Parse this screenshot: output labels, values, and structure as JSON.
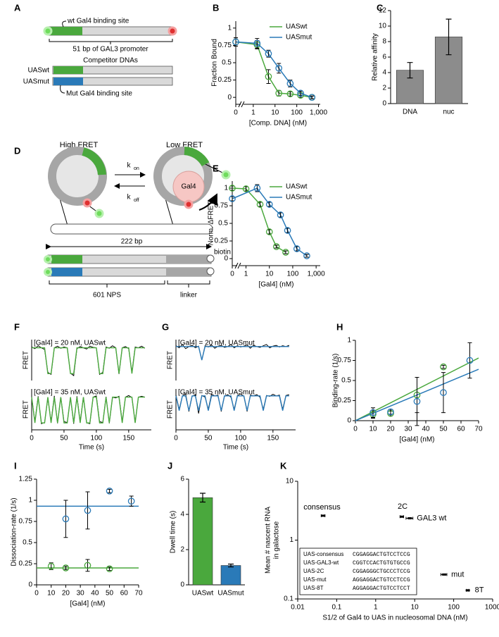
{
  "panels": [
    "A",
    "B",
    "C",
    "D",
    "E",
    "F",
    "G",
    "H",
    "I",
    "J",
    "K"
  ],
  "diagram_a": {
    "labels": [
      "wt Gal4 binding site",
      "51 bp of GAL3 promoter",
      "Competitor DNAs",
      "UASwt",
      "UASmut",
      "Mut Gal4 binding site"
    ]
  },
  "diagram_d": {
    "labels": [
      "High FRET",
      "Low FRET",
      "k",
      "on",
      "k",
      "off",
      "Gal4",
      "222 bp",
      "biotin",
      "601 NPS",
      "linker"
    ]
  },
  "chart_data": [
    {
      "type": "scatter",
      "connect": true,
      "axis_break": true,
      "xscale": "log",
      "xlabel": "[Comp. DNA] (nM)",
      "ylabel": "Fraction Bound",
      "xlim": [
        0.6,
        1200
      ],
      "xticks": [
        0,
        1,
        10,
        100,
        {
          "value": 1000,
          "label": "1,000"
        }
      ],
      "ylim": [
        -0.1,
        1.1
      ],
      "yticks": [
        0,
        0.25,
        0.5,
        0.75,
        1
      ],
      "legend": "upper right",
      "series": [
        {
          "name": "UASwt",
          "color": "#4aa83d",
          "x": [
            0,
            1.5,
            5,
            15,
            50,
            150,
            500
          ],
          "values": [
            0.8,
            0.76,
            0.3,
            0.06,
            0.05,
            0.03,
            0.0
          ],
          "errors": [
            0.06,
            0.06,
            0.1,
            0.04,
            0.03,
            0.03,
            0.02
          ]
        },
        {
          "name": "UASmut",
          "color": "#2a7ab8",
          "x": [
            0,
            1.5,
            5,
            15,
            50,
            150,
            500
          ],
          "values": [
            0.8,
            0.78,
            0.63,
            0.42,
            0.2,
            0.06,
            0.0
          ],
          "errors": [
            0.06,
            0.07,
            0.05,
            0.07,
            0.05,
            0.03,
            0.02
          ]
        }
      ]
    },
    {
      "type": "bar",
      "ylabel": "Relative affinity",
      "categories": [
        "DNA",
        "nuc"
      ],
      "values": [
        4.3,
        8.6
      ],
      "errors": [
        1.0,
        2.3
      ],
      "color": "#8c8c8c",
      "ylim": [
        0,
        12
      ],
      "yticks": [
        0,
        2,
        4,
        6,
        8,
        10,
        12
      ]
    },
    {
      "type": "scatter",
      "connect": true,
      "axis_break": true,
      "xscale": "log",
      "xlabel": "[Gal4] (nM)",
      "ylabel": "Norm.    ΔFRET",
      "xlim": [
        0.9,
        1500
      ],
      "xticks": [
        0,
        1,
        10,
        100,
        {
          "value": 1000,
          "label": "1,000"
        }
      ],
      "ylim": [
        -0.1,
        1.1
      ],
      "yticks": [
        0,
        0.25,
        0.5,
        0.75,
        1
      ],
      "legend": "upper right",
      "series": [
        {
          "name": "UASwt",
          "color": "#4aa83d",
          "x": [
            0,
            1,
            4,
            10,
            20,
            50
          ],
          "values": [
            1.0,
            0.99,
            0.77,
            0.38,
            0.17,
            0.09
          ],
          "errors": [
            0.03,
            0.03,
            0.03,
            0.03,
            0.02,
            0.02
          ]
        },
        {
          "name": "UASmut",
          "color": "#2a7ab8",
          "x": [
            0,
            3,
            10,
            30,
            60,
            150,
            400
          ],
          "values": [
            0.85,
            1.0,
            0.77,
            0.62,
            0.4,
            0.14,
            0.04
          ],
          "errors": [
            0.03,
            0.05,
            0.03,
            0.03,
            0.03,
            0.03,
            0.02
          ]
        }
      ]
    },
    {
      "type": "trace",
      "xlabel": "Time (s)",
      "ylabel": "FRET",
      "color": "#000000",
      "fit_color": "#4aa83d",
      "xlim": [
        0,
        185
      ],
      "xticks": [
        0,
        50,
        100,
        150
      ],
      "ylim": [
        0,
        1
      ],
      "x": [
        0,
        5,
        10,
        15,
        20,
        25,
        30,
        35,
        40,
        45,
        50,
        55,
        60,
        65,
        70,
        75,
        80,
        85,
        90,
        95,
        100,
        105,
        110,
        115,
        120,
        125,
        130,
        135,
        140,
        145,
        150,
        155,
        160,
        165,
        170,
        175
      ],
      "subplots": [
        {
          "label": "[Gal4] = 20 nM, UASwt",
          "values": [
            0.82,
            0.78,
            0.85,
            0.8,
            0.76,
            0.2,
            0.15,
            0.8,
            0.84,
            0.79,
            0.82,
            0.8,
            0.18,
            0.12,
            0.78,
            0.83,
            0.8,
            0.77,
            0.84,
            0.81,
            0.8,
            0.15,
            0.2,
            0.82,
            0.79,
            0.85,
            0.8,
            0.16,
            0.8,
            0.83,
            0.78,
            0.2,
            0.82,
            0.8,
            0.84,
            0.79
          ],
          "fit": [
            0.8,
            0.8,
            0.8,
            0.8,
            0.8,
            0.17,
            0.17,
            0.8,
            0.8,
            0.8,
            0.8,
            0.8,
            0.17,
            0.17,
            0.8,
            0.8,
            0.8,
            0.8,
            0.8,
            0.8,
            0.8,
            0.17,
            0.17,
            0.8,
            0.8,
            0.8,
            0.8,
            0.17,
            0.8,
            0.8,
            0.8,
            0.17,
            0.8,
            0.8,
            0.8,
            0.8
          ]
        },
        {
          "label": "[Gal4] = 35 nM, UASwt",
          "values": [
            0.8,
            0.2,
            0.82,
            0.15,
            0.18,
            0.78,
            0.2,
            0.83,
            0.16,
            0.8,
            0.2,
            0.18,
            0.79,
            0.15,
            0.82,
            0.2,
            0.8,
            0.17,
            0.15,
            0.8,
            0.83,
            0.2,
            0.18,
            0.81,
            0.16,
            0.8,
            0.78,
            0.82,
            0.2,
            0.8,
            0.84,
            0.79,
            0.18,
            0.8,
            0.82,
            0.8
          ],
          "fit": [
            0.8,
            0.17,
            0.8,
            0.17,
            0.17,
            0.8,
            0.17,
            0.8,
            0.17,
            0.8,
            0.17,
            0.17,
            0.8,
            0.17,
            0.8,
            0.17,
            0.8,
            0.17,
            0.17,
            0.8,
            0.8,
            0.17,
            0.17,
            0.8,
            0.17,
            0.8,
            0.8,
            0.8,
            0.17,
            0.8,
            0.8,
            0.8,
            0.17,
            0.8,
            0.8,
            0.8
          ]
        }
      ]
    },
    {
      "type": "trace",
      "xlabel": "Time (s)",
      "ylabel": "FRET",
      "color": "#000000",
      "fit_color": "#2a7ab8",
      "xlim": [
        0,
        185
      ],
      "xticks": [
        0,
        50,
        100,
        150
      ],
      "ylim": [
        0,
        1
      ],
      "x": [
        0,
        5,
        10,
        15,
        20,
        25,
        30,
        35,
        40,
        45,
        50,
        55,
        60,
        65,
        70,
        75,
        80,
        85,
        90,
        95,
        100,
        105,
        110,
        115,
        120,
        125,
        130,
        135,
        140,
        145,
        150,
        155,
        160,
        165,
        170,
        175
      ],
      "subplots": [
        {
          "label": "[Gal4] = 20 nM, UASmut",
          "values": [
            0.85,
            0.8,
            0.88,
            0.78,
            0.83,
            0.86,
            0.8,
            0.84,
            0.5,
            0.85,
            0.82,
            0.87,
            0.79,
            0.84,
            0.86,
            0.81,
            0.83,
            0.88,
            0.8,
            0.85,
            0.82,
            0.84,
            0.87,
            0.79,
            0.86,
            0.83,
            0.81,
            0.85,
            0.88,
            0.8,
            0.84,
            0.86,
            0.82,
            0.85,
            0.83,
            0.86
          ],
          "fit": [
            0.83,
            0.83,
            0.83,
            0.83,
            0.83,
            0.83,
            0.83,
            0.83,
            0.5,
            0.83,
            0.83,
            0.83,
            0.83,
            0.83,
            0.83,
            0.83,
            0.83,
            0.83,
            0.83,
            0.83,
            0.83,
            0.83,
            0.83,
            0.83,
            0.83,
            0.83,
            0.83,
            0.83,
            0.83,
            0.83,
            0.83,
            0.83,
            0.83,
            0.83,
            0.83,
            0.83
          ]
        },
        {
          "label": "[Gal4] = 35 nM, UASmut",
          "values": [
            0.85,
            0.5,
            0.83,
            0.88,
            0.45,
            0.82,
            0.86,
            0.4,
            0.84,
            0.8,
            0.5,
            0.87,
            0.83,
            0.85,
            0.45,
            0.82,
            0.86,
            0.8,
            0.5,
            0.84,
            0.88,
            0.82,
            0.45,
            0.85,
            0.83,
            0.86,
            0.8,
            0.5,
            0.84,
            0.82,
            0.87,
            0.83,
            0.85,
            0.5,
            0.84,
            0.86
          ],
          "fit": [
            0.83,
            0.47,
            0.83,
            0.83,
            0.47,
            0.83,
            0.83,
            0.47,
            0.83,
            0.83,
            0.47,
            0.83,
            0.83,
            0.83,
            0.47,
            0.83,
            0.83,
            0.83,
            0.47,
            0.83,
            0.83,
            0.83,
            0.47,
            0.83,
            0.83,
            0.83,
            0.83,
            0.47,
            0.83,
            0.83,
            0.83,
            0.83,
            0.83,
            0.47,
            0.83,
            0.83
          ]
        }
      ]
    },
    {
      "type": "scatter",
      "xlabel": "[Gal4] (nM)",
      "ylabel": "Binding-rate (1/s)",
      "xlim": [
        0,
        70
      ],
      "xticks": [
        0,
        10,
        20,
        30,
        40,
        50,
        60,
        70
      ],
      "ylim": [
        0,
        1
      ],
      "yticks": [
        0,
        0.25,
        0.5,
        0.75,
        1
      ],
      "series": [
        {
          "style": "line",
          "color": "#4aa83d",
          "x": [
            0,
            70
          ],
          "values": [
            0,
            0.78
          ]
        },
        {
          "style": "line",
          "color": "#2a7ab8",
          "x": [
            0,
            70
          ],
          "values": [
            0,
            0.64
          ]
        },
        {
          "color": "#4aa83d",
          "x": [
            10,
            20,
            35,
            50
          ],
          "values": [
            0.08,
            0.09,
            0.32,
            0.67
          ],
          "errors": [
            0.05,
            0.03,
            0.22,
            0.02
          ]
        },
        {
          "color": "#2a7ab8",
          "x": [
            10,
            20,
            35,
            50,
            65
          ],
          "values": [
            0.1,
            0.11,
            0.24,
            0.35,
            0.75
          ],
          "errors": [
            0.06,
            0.03,
            0.3,
            0.25,
            0.22
          ]
        }
      ]
    },
    {
      "type": "scatter",
      "xlabel": "[Gal4] (nM)",
      "ylabel": "Dissociation-rate (1/s)",
      "xlim": [
        0,
        70
      ],
      "xticks": [
        0,
        10,
        20,
        30,
        40,
        50,
        60,
        70
      ],
      "ylim": [
        0,
        1.25
      ],
      "yticks": [
        0,
        0.25,
        0.5,
        0.75,
        1,
        1.25
      ],
      "series": [
        {
          "style": "line",
          "color": "#4aa83d",
          "x": [
            0,
            70
          ],
          "values": [
            0.2,
            0.2
          ]
        },
        {
          "style": "line",
          "color": "#2a7ab8",
          "x": [
            0,
            70
          ],
          "values": [
            0.93,
            0.93
          ]
        },
        {
          "color": "#4aa83d",
          "x": [
            10,
            20,
            35,
            50
          ],
          "values": [
            0.22,
            0.2,
            0.23,
            0.19
          ],
          "errors": [
            0.04,
            0.02,
            0.07,
            0.02
          ]
        },
        {
          "color": "#2a7ab8",
          "x": [
            20,
            35,
            50,
            65
          ],
          "values": [
            0.78,
            0.88,
            1.11,
            0.99
          ],
          "errors": [
            0.22,
            0.22,
            0.02,
            0.06
          ]
        }
      ]
    },
    {
      "type": "bar",
      "ylabel": "Dwell time (s)",
      "categories": [
        "UASwt",
        "UASmut"
      ],
      "values": [
        4.95,
        1.1
      ],
      "errors": [
        0.25,
        0.08
      ],
      "colors": [
        "#4aa83d",
        "#2a7ab8"
      ],
      "ylim": [
        0,
        6
      ],
      "yticks": [
        0,
        2,
        4,
        6
      ]
    },
    {
      "type": "scatter",
      "marker": "dash",
      "xscale": "log",
      "yscale": "log",
      "xlabel": "S1/2 of Gal4 to UAS in nucleosomal DNA (nM)",
      "ylabel": [
        "Mean # nascent RNA",
        "in galactose"
      ],
      "xlim": [
        0.01,
        1000
      ],
      "xticks": [
        0.01,
        0.1,
        1,
        10,
        100,
        1000
      ],
      "ylim": [
        0.1,
        10
      ],
      "yticks": [
        0.1,
        1,
        10
      ],
      "series": [
        {
          "color": "#000000",
          "x": [
            0.045,
            4.7,
            7.5,
            57,
            230
          ],
          "values": [
            2.6,
            2.5,
            2.35,
            0.26,
            0.14
          ],
          "x_errors": [
            0.005,
            0.5,
            1.5,
            10,
            15
          ],
          "labels": [
            "consensus",
            "2C",
            "GAL3 wt",
            "mut",
            "8T"
          ]
        }
      ],
      "table": {
        "rows": [
          [
            "UAS-consensus",
            "CGGAGGACTGTCCTCCG"
          ],
          [
            "UAS-GAL3-wt",
            "CGGTCCACTGTGTGCCG"
          ],
          [
            "UAS-2C",
            "CGGAGGGCTGCCCTCCG"
          ],
          [
            "UAS-mut",
            "AGGAGGACTGTCCTCCG"
          ],
          [
            "UAS-8T",
            "AGGAGGACTGTCCTCCT"
          ]
        ]
      }
    }
  ]
}
